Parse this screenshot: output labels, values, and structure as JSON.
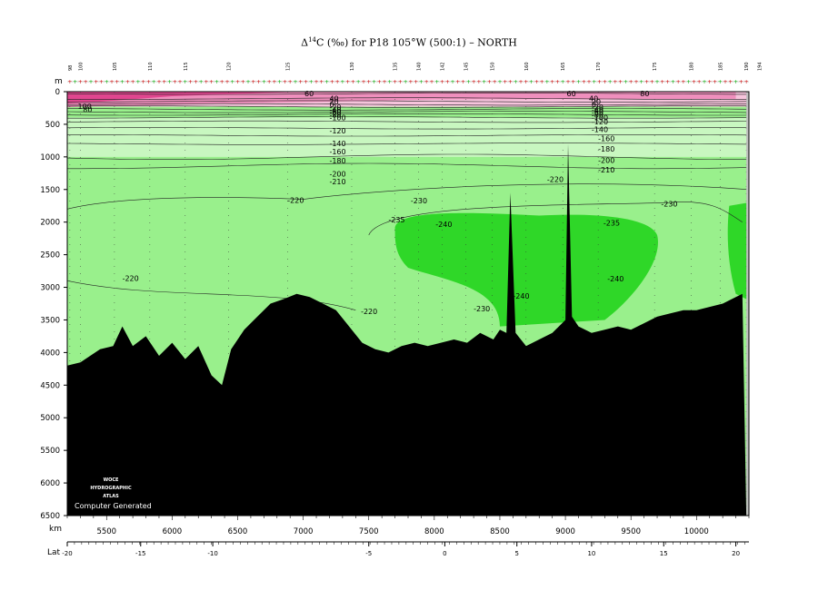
{
  "title": {
    "prefix": "Δ",
    "sup": "14",
    "rest": "C (‰) for P18 105°W (500:1) – NORTH"
  },
  "watermark": {
    "line1": "WOCE",
    "line2": "HYDROGRAPHIC",
    "line3": "ATLAS",
    "line4": "Computer Generated"
  },
  "colors": {
    "pink_dark": "#e0468f",
    "pink_mid": "#ef8fbd",
    "pink_light": "#f6c4dc",
    "green_pale": "#c8f7c0",
    "green_light": "#99f08c",
    "green_mid": "#66e35a",
    "green_bright": "#2fd728",
    "bottom": "#000000",
    "coast": "#bebebe"
  },
  "chart_data": {
    "type": "contour-section",
    "variable": "Δ14C (‰)",
    "section": "P18 105°W",
    "axes": {
      "y_label": "m",
      "y_range": [
        0,
        6500
      ],
      "y_ticks": [
        0,
        500,
        1000,
        1500,
        2000,
        2500,
        3000,
        3500,
        4000,
        4500,
        5000,
        5500,
        6000,
        6500
      ],
      "x_label": "km",
      "x_range": [
        5200,
        10400
      ],
      "x_ticks": [
        5500,
        6000,
        6500,
        7000,
        7500,
        8000,
        8500,
        9000,
        9500,
        10000
      ],
      "lat_label": "Lat",
      "lat_ticks": [
        {
          "label": "-20",
          "km": 5200
        },
        {
          "label": "-15",
          "km": 5760
        },
        {
          "label": "-10",
          "km": 6310
        },
        {
          "label": "-5",
          "km": 7500
        },
        {
          "label": "0",
          "km": 8080
        },
        {
          "label": "5",
          "km": 8630
        },
        {
          "label": "10",
          "km": 9200
        },
        {
          "label": "15",
          "km": 9750
        },
        {
          "label": "20",
          "km": 10300
        }
      ]
    },
    "stations": [
      {
        "label": "98",
        "km": 5220
      },
      {
        "label": "100",
        "km": 5300
      },
      {
        "label": "105",
        "km": 5560
      },
      {
        "label": "110",
        "km": 5830
      },
      {
        "label": "115",
        "km": 6100
      },
      {
        "label": "120",
        "km": 6430
      },
      {
        "label": "125",
        "km": 6880
      },
      {
        "label": "130",
        "km": 7370
      },
      {
        "label": "135",
        "km": 7700
      },
      {
        "label": "140",
        "km": 7880
      },
      {
        "label": "142",
        "km": 8060
      },
      {
        "label": "145",
        "km": 8240
      },
      {
        "label": "150",
        "km": 8440
      },
      {
        "label": "160",
        "km": 8700
      },
      {
        "label": "165",
        "km": 8980
      },
      {
        "label": "170",
        "km": 9250
      },
      {
        "label": "175",
        "km": 9680
      },
      {
        "label": "180",
        "km": 9960
      },
      {
        "label": "185",
        "km": 10180
      },
      {
        "label": "190",
        "km": 10380
      },
      {
        "label": "194",
        "km": 10480
      }
    ],
    "isoline_depths_m": [
      {
        "value": 60,
        "depth": 30
      },
      {
        "value": 40,
        "depth": 105
      },
      {
        "value": 20,
        "depth": 150
      },
      {
        "value": 0,
        "depth": 195
      },
      {
        "value": -20,
        "depth": 230
      },
      {
        "value": -40,
        "depth": 270
      },
      {
        "value": -60,
        "depth": 310
      },
      {
        "value": -80,
        "depth": 350
      },
      {
        "value": -100,
        "depth": 395
      },
      {
        "value": -120,
        "depth": 460
      },
      {
        "value": -140,
        "depth": 560
      },
      {
        "value": -160,
        "depth": 670
      },
      {
        "value": -180,
        "depth": 800
      },
      {
        "value": -200,
        "depth": 1000
      },
      {
        "value": -210,
        "depth": 1140
      }
    ],
    "contour_labels": [
      {
        "text": "60",
        "km": 7010,
        "depth": 30
      },
      {
        "text": "60",
        "km": 9010,
        "depth": 30
      },
      {
        "text": "80",
        "km": 9570,
        "depth": 30
      },
      {
        "text": "100",
        "km": 5280,
        "depth": 220
      },
      {
        "text": "80",
        "km": 5320,
        "depth": 270
      },
      {
        "text": "40",
        "km": 7200,
        "depth": 105
      },
      {
        "text": "20",
        "km": 7200,
        "depth": 150
      },
      {
        "text": "0",
        "km": 7200,
        "depth": 195
      },
      {
        "text": "-20",
        "km": 7200,
        "depth": 235
      },
      {
        "text": "-40",
        "km": 7200,
        "depth": 275
      },
      {
        "text": "-60",
        "km": 7200,
        "depth": 315
      },
      {
        "text": "-80",
        "km": 7200,
        "depth": 355
      },
      {
        "text": "-100",
        "km": 7200,
        "depth": 400
      },
      {
        "text": "-120",
        "km": 7200,
        "depth": 600
      },
      {
        "text": "-140",
        "km": 7200,
        "depth": 790
      },
      {
        "text": "-160",
        "km": 7200,
        "depth": 920
      },
      {
        "text": "-180",
        "km": 7200,
        "depth": 1060
      },
      {
        "text": "-200",
        "km": 7200,
        "depth": 1260
      },
      {
        "text": "-210",
        "km": 7200,
        "depth": 1380
      },
      {
        "text": "40",
        "km": 9180,
        "depth": 105
      },
      {
        "text": "20",
        "km": 9200,
        "depth": 150
      },
      {
        "text": "0",
        "km": 9200,
        "depth": 195
      },
      {
        "text": "-20",
        "km": 9200,
        "depth": 235
      },
      {
        "text": "-40",
        "km": 9200,
        "depth": 275
      },
      {
        "text": "-60",
        "km": 9200,
        "depth": 315
      },
      {
        "text": "-80",
        "km": 9200,
        "depth": 355
      },
      {
        "text": "-100",
        "km": 9200,
        "depth": 400
      },
      {
        "text": "-120",
        "km": 9200,
        "depth": 460
      },
      {
        "text": "-140",
        "km": 9200,
        "depth": 580
      },
      {
        "text": "-160",
        "km": 9250,
        "depth": 720
      },
      {
        "text": "-180",
        "km": 9250,
        "depth": 880
      },
      {
        "text": "-200",
        "km": 9250,
        "depth": 1050
      },
      {
        "text": "-210",
        "km": 9250,
        "depth": 1200
      },
      {
        "text": "-220",
        "km": 6880,
        "depth": 1660
      },
      {
        "text": "-230",
        "km": 7820,
        "depth": 1670
      },
      {
        "text": "-220",
        "km": 8860,
        "depth": 1340
      },
      {
        "text": "-230",
        "km": 9730,
        "depth": 1720
      },
      {
        "text": "-235",
        "km": 7650,
        "depth": 1960
      },
      {
        "text": "-240",
        "km": 8010,
        "depth": 2030
      },
      {
        "text": "-235",
        "km": 9290,
        "depth": 2010
      },
      {
        "text": "-220",
        "km": 5620,
        "depth": 2860
      },
      {
        "text": "-240",
        "km": 9320,
        "depth": 2870
      },
      {
        "text": "-240",
        "km": 8600,
        "depth": 3130
      },
      {
        "text": "-230",
        "km": 8300,
        "depth": 3330
      },
      {
        "text": "-220",
        "km": 7440,
        "depth": 3370
      }
    ],
    "bottom_depth_profile": [
      [
        5200,
        4200
      ],
      [
        5300,
        4150
      ],
      [
        5450,
        3950
      ],
      [
        5550,
        3900
      ],
      [
        5620,
        3600
      ],
      [
        5700,
        3900
      ],
      [
        5800,
        3750
      ],
      [
        5900,
        4050
      ],
      [
        6000,
        3850
      ],
      [
        6100,
        4100
      ],
      [
        6200,
        3900
      ],
      [
        6300,
        4350
      ],
      [
        6380,
        4500
      ],
      [
        6450,
        3950
      ],
      [
        6550,
        3650
      ],
      [
        6650,
        3450
      ],
      [
        6750,
        3250
      ],
      [
        6850,
        3180
      ],
      [
        6950,
        3100
      ],
      [
        7050,
        3150
      ],
      [
        7150,
        3250
      ],
      [
        7250,
        3350
      ],
      [
        7350,
        3600
      ],
      [
        7450,
        3850
      ],
      [
        7550,
        3950
      ],
      [
        7650,
        4000
      ],
      [
        7750,
        3900
      ],
      [
        7850,
        3850
      ],
      [
        7950,
        3900
      ],
      [
        8050,
        3850
      ],
      [
        8150,
        3800
      ],
      [
        8250,
        3850
      ],
      [
        8350,
        3700
      ],
      [
        8450,
        3800
      ],
      [
        8500,
        3650
      ],
      [
        8550,
        3700
      ],
      [
        8580,
        1550
      ],
      [
        8620,
        3700
      ],
      [
        8700,
        3900
      ],
      [
        8800,
        3800
      ],
      [
        8900,
        3700
      ],
      [
        8950,
        3600
      ],
      [
        9000,
        3500
      ],
      [
        9020,
        800
      ],
      [
        9050,
        3450
      ],
      [
        9100,
        3600
      ],
      [
        9200,
        3700
      ],
      [
        9300,
        3650
      ],
      [
        9400,
        3600
      ],
      [
        9500,
        3650
      ],
      [
        9600,
        3550
      ],
      [
        9700,
        3450
      ],
      [
        9800,
        3400
      ],
      [
        9900,
        3350
      ],
      [
        10000,
        3350
      ],
      [
        10100,
        3300
      ],
      [
        10200,
        3250
      ],
      [
        10300,
        3150
      ],
      [
        10350,
        3100
      ]
    ],
    "coast_km": 10380
  }
}
